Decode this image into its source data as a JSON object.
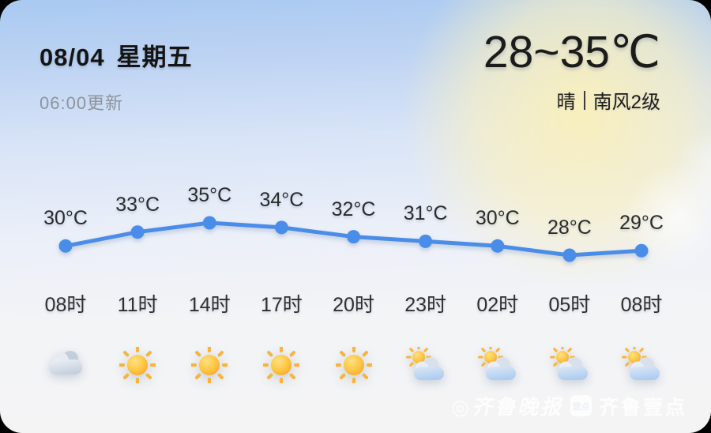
{
  "header": {
    "date": "08/04",
    "weekday": "星期五",
    "update_time": "06:00更新",
    "temp_range": "28~35℃",
    "condition": "晴",
    "wind": "南风2级"
  },
  "chart_data": {
    "type": "line",
    "title": "hourly temperature forecast",
    "x": [
      "08时",
      "11时",
      "14时",
      "17时",
      "20时",
      "23时",
      "02时",
      "05时",
      "08时"
    ],
    "values": [
      30,
      33,
      35,
      34,
      32,
      31,
      30,
      28,
      29
    ],
    "unit": "°C",
    "icons": [
      "cloudy",
      "sunny",
      "sunny",
      "sunny",
      "sunny",
      "partly-cloudy",
      "partly-cloudy",
      "partly-cloudy",
      "partly-cloudy"
    ],
    "line_color": "#4a8de8",
    "ylim": [
      27,
      36
    ],
    "grid": false,
    "legend": false
  },
  "watermark": {
    "brand1": "◎齐鲁晚报",
    "logo_text": "壹点",
    "brand2": "齐鲁壹点"
  },
  "colors": {
    "accent_blue": "#4a8de8",
    "sun_yellow": "#fdc742",
    "bg_top": "#a9c9f1",
    "bg_bottom": "#f4f4f5",
    "text_dark": "#1b1b1b",
    "text_muted": "#8d949c"
  }
}
